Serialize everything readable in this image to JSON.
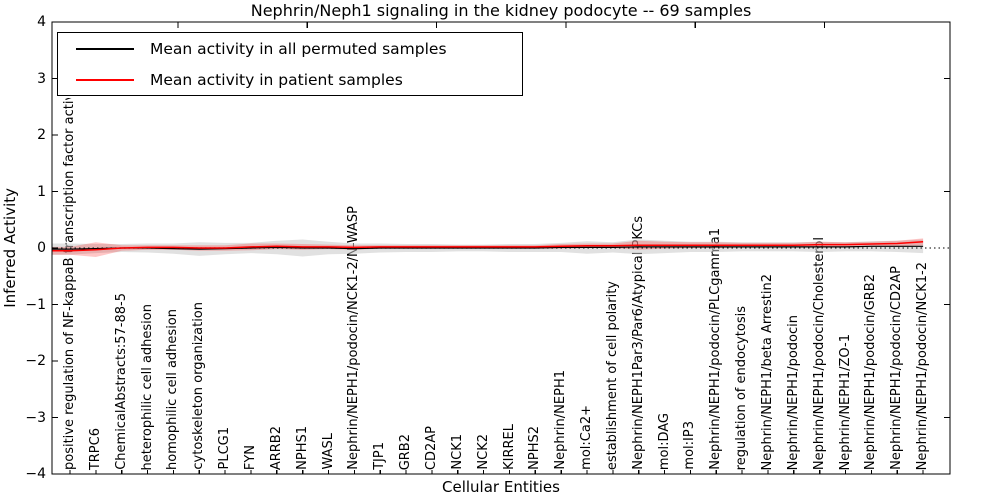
{
  "chart_data": {
    "type": "line",
    "title": "Nephrin/Neph1 signaling in the kidney podocyte -- 69 samples",
    "xlabel": "Cellular Entities",
    "ylabel": "Inferred Activity",
    "ylim": [
      -4,
      4
    ],
    "y_ticks": [
      4,
      3,
      2,
      1,
      0,
      -1,
      -2,
      -3,
      -4
    ],
    "y_tick_labels": [
      "4",
      "3",
      "2",
      "1",
      "0",
      "−1",
      "−2",
      "−3",
      "−4"
    ],
    "grid": false,
    "legend_position": "upper left",
    "zero_line": {
      "y": 0,
      "style": "dotted",
      "color": "#333333"
    },
    "categories": [
      "positive regulation of NF-kappaB transcription factor activity",
      "TRPC6",
      "ChemicalAbstracts:57-88-5",
      "heterophilic cell adhesion",
      "homophilic cell adhesion",
      "cytoskeleton organization",
      "PLCG1",
      "FYN",
      "ARRB2",
      "NPHS1",
      "WASL",
      "Nephrin/NEPH1/podocin/NCK1-2/N-WASP",
      "TJP1",
      "GRB2",
      "CD2AP",
      "NCK1",
      "NCK2",
      "KIRREL",
      "NPHS2",
      "Nephrin/NEPH1",
      "mol:Ca2+",
      "establishment of cell polarity",
      "Nephrin/NEPH1Par3/Par6/Atypical PKCs",
      "mol:DAG",
      "mol:IP3",
      "Nephrin/NEPH1/podocin/PLCgamma1",
      "regulation of endocytosis",
      "Nephrin/NEPH1/beta Arrestin2",
      "Nephrin/NEPH1/podocin",
      "Nephrin/NEPH1/podocin/Cholesterol",
      "Nephrin/NEPH1/ZO-1",
      "Nephrin/NEPH1/podocin/GRB2",
      "Nephrin/NEPH1/podocin/CD2AP",
      "Nephrin/NEPH1/podocin/NCK1-2"
    ],
    "series": [
      {
        "name": "Mean activity in all permuted samples",
        "color": "#000000",
        "band_color": "#c8c8c8",
        "band_opacity": 0.55,
        "values": [
          -0.02,
          -0.01,
          0.0,
          0.0,
          -0.01,
          -0.02,
          -0.01,
          0.0,
          0.01,
          0.0,
          0.0,
          -0.01,
          0.0,
          0.0,
          0.0,
          0.0,
          0.0,
          0.0,
          0.0,
          0.01,
          0.01,
          0.01,
          0.02,
          0.02,
          0.02,
          0.02,
          0.02,
          0.02,
          0.02,
          0.02,
          0.02,
          0.03,
          0.03,
          0.03
        ],
        "band_halfwidth": [
          0.1,
          0.08,
          0.07,
          0.08,
          0.09,
          0.12,
          0.1,
          0.09,
          0.12,
          0.15,
          0.11,
          0.09,
          0.08,
          0.07,
          0.07,
          0.06,
          0.06,
          0.07,
          0.07,
          0.08,
          0.11,
          0.09,
          0.13,
          0.11,
          0.09,
          0.09,
          0.08,
          0.08,
          0.08,
          0.09,
          0.08,
          0.09,
          0.1,
          0.12
        ]
      },
      {
        "name": "Mean activity in patient samples",
        "color": "#ff0000",
        "band_color": "#ff0000",
        "band_opacity": 0.22,
        "values": [
          -0.05,
          -0.03,
          0.0,
          0.01,
          0.01,
          0.0,
          0.0,
          0.02,
          0.03,
          0.02,
          0.02,
          0.01,
          0.02,
          0.02,
          0.02,
          0.02,
          0.02,
          0.02,
          0.02,
          0.03,
          0.04,
          0.04,
          0.05,
          0.05,
          0.05,
          0.05,
          0.05,
          0.05,
          0.05,
          0.06,
          0.06,
          0.07,
          0.08,
          0.11
        ],
        "band_halfwidth": [
          0.07,
          0.13,
          0.05,
          0.04,
          0.04,
          0.05,
          0.05,
          0.06,
          0.05,
          0.05,
          0.04,
          0.04,
          0.03,
          0.03,
          0.03,
          0.03,
          0.03,
          0.03,
          0.03,
          0.04,
          0.04,
          0.04,
          0.08,
          0.06,
          0.05,
          0.05,
          0.04,
          0.04,
          0.04,
          0.05,
          0.04,
          0.04,
          0.05,
          0.06
        ]
      }
    ]
  },
  "colors": {
    "frame": "#000000",
    "background": "#ffffff",
    "permuted_line": "#000000",
    "patient_line": "#ff0000",
    "permuted_band": "#c8c8c8",
    "patient_band": "#ffb3b3"
  }
}
